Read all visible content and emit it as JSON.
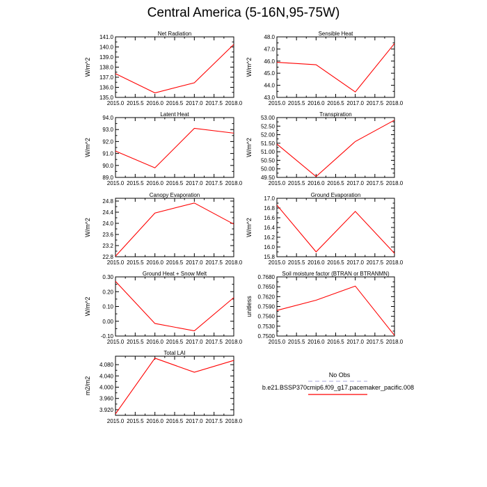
{
  "page": {
    "title": "Central America (5-16N,95-75W)"
  },
  "chart_data": [
    {
      "type": "line",
      "title": "Net Radiation",
      "ylabel": "W/m^2",
      "x": [
        2015,
        2016,
        2017,
        2018
      ],
      "xlim": [
        2015.0,
        2018.0
      ],
      "xticks": [
        "2015.0",
        "2015.5",
        "2016.0",
        "2016.5",
        "2017.0",
        "2017.5",
        "2018.0"
      ],
      "ylim": [
        135.0,
        141.0
      ],
      "yticks": [
        "135.0",
        "136.0",
        "137.0",
        "138.0",
        "139.0",
        "140.0",
        "141.0"
      ],
      "series": [
        {
          "values": [
            137.35,
            135.45,
            136.45,
            140.25
          ],
          "color": "#ff0000"
        }
      ]
    },
    {
      "type": "line",
      "title": "Sensible Heat",
      "ylabel": "W/m^2",
      "x": [
        2015,
        2016,
        2017,
        2018
      ],
      "xlim": [
        2015.0,
        2018.0
      ],
      "xticks": [
        "2015.0",
        "2015.5",
        "2016.0",
        "2016.5",
        "2017.0",
        "2017.5",
        "2018.0"
      ],
      "ylim": [
        43.0,
        48.0
      ],
      "yticks": [
        "43.0",
        "44.0",
        "45.0",
        "46.0",
        "47.0",
        "48.0"
      ],
      "series": [
        {
          "values": [
            45.9,
            45.7,
            43.45,
            47.45
          ],
          "color": "#ff0000"
        }
      ]
    },
    {
      "type": "line",
      "title": "Latent Heat",
      "ylabel": "W/m^2",
      "x": [
        2015,
        2016,
        2017,
        2018
      ],
      "xlim": [
        2015.0,
        2018.0
      ],
      "xticks": [
        "2015.0",
        "2015.5",
        "2016.0",
        "2016.5",
        "2017.0",
        "2017.5",
        "2018.0"
      ],
      "ylim": [
        89.0,
        94.0
      ],
      "yticks": [
        "89.0",
        "90.0",
        "91.0",
        "92.0",
        "93.0",
        "94.0"
      ],
      "series": [
        {
          "values": [
            91.2,
            89.8,
            93.1,
            92.7
          ],
          "color": "#ff0000"
        }
      ]
    },
    {
      "type": "line",
      "title": "Transpiration",
      "ylabel": "W/m^2",
      "x": [
        2015,
        2016,
        2017,
        2018
      ],
      "xlim": [
        2015.0,
        2018.0
      ],
      "xticks": [
        "2015.0",
        "2015.5",
        "2016.0",
        "2016.5",
        "2017.0",
        "2017.5",
        "2018.0"
      ],
      "ylim": [
        49.5,
        53.0
      ],
      "yticks": [
        "49.50",
        "50.00",
        "50.50",
        "51.00",
        "51.50",
        "52.00",
        "52.50",
        "53.00"
      ],
      "series": [
        {
          "values": [
            51.45,
            49.55,
            51.6,
            52.85
          ],
          "color": "#ff0000"
        }
      ]
    },
    {
      "type": "line",
      "title": "Canopy Evaporation",
      "ylabel": "W/m^2",
      "x": [
        2015,
        2016,
        2017,
        2018
      ],
      "xlim": [
        2015.0,
        2018.0
      ],
      "xticks": [
        "2015.0",
        "2015.5",
        "2016.0",
        "2016.5",
        "2017.0",
        "2017.5",
        "2018.0"
      ],
      "ylim": [
        22.8,
        24.9
      ],
      "yticks": [
        "22.8",
        "23.2",
        "23.6",
        "24.0",
        "24.4",
        "24.8"
      ],
      "series": [
        {
          "values": [
            22.82,
            24.37,
            24.73,
            23.97
          ],
          "color": "#ff0000"
        }
      ]
    },
    {
      "type": "line",
      "title": "Ground Evaporation",
      "ylabel": "W/m^2",
      "x": [
        2015,
        2016,
        2017,
        2018
      ],
      "xlim": [
        2015.0,
        2018.0
      ],
      "xticks": [
        "2015.0",
        "2015.5",
        "2016.0",
        "2016.5",
        "2017.0",
        "2017.5",
        "2018.0"
      ],
      "ylim": [
        15.8,
        17.0
      ],
      "yticks": [
        "15.8",
        "16.0",
        "16.2",
        "16.4",
        "16.6",
        "16.8",
        "17.0"
      ],
      "series": [
        {
          "values": [
            16.86,
            15.9,
            16.73,
            15.87
          ],
          "color": "#ff0000"
        }
      ]
    },
    {
      "type": "line",
      "title": "Ground Heat + Snow Melt",
      "ylabel": "W/m^2",
      "x": [
        2015,
        2016,
        2017,
        2018
      ],
      "xlim": [
        2015.0,
        2018.0
      ],
      "xticks": [
        "2015.0",
        "2015.5",
        "2016.0",
        "2016.5",
        "2017.0",
        "2017.5",
        "2018.0"
      ],
      "ylim": [
        -0.1,
        0.3
      ],
      "yticks": [
        "-0.10",
        "0.00",
        "0.10",
        "0.20",
        "0.30"
      ],
      "series": [
        {
          "values": [
            0.27,
            -0.015,
            -0.065,
            0.16
          ],
          "color": "#ff0000"
        }
      ]
    },
    {
      "type": "line",
      "title": "Soil moisture factor (BTRAN or BTRANMN)",
      "ylabel": "unitless",
      "x": [
        2015,
        2016,
        2017,
        2018
      ],
      "xlim": [
        2015.0,
        2018.0
      ],
      "xticks": [
        "2015.0",
        "2015.5",
        "2016.0",
        "2016.5",
        "2017.0",
        "2017.5",
        "2018.0"
      ],
      "ylim": [
        0.75,
        0.768
      ],
      "yticks": [
        "0.7500",
        "0.7530",
        "0.7560",
        "0.7590",
        "0.7620",
        "0.7650",
        "0.7680"
      ],
      "series": [
        {
          "values": [
            0.7578,
            0.7609,
            0.7652,
            0.7502
          ],
          "color": "#ff0000"
        }
      ]
    },
    {
      "type": "line",
      "title": "Total LAI",
      "ylabel": "m2/m2",
      "x": [
        2015,
        2016,
        2017,
        2018
      ],
      "xlim": [
        2015.0,
        2018.0
      ],
      "xticks": [
        "2015.0",
        "2015.5",
        "2016.0",
        "2016.5",
        "2017.0",
        "2017.5",
        "2018.0"
      ],
      "ylim": [
        3.9,
        4.11
      ],
      "yticks": [
        "3.920",
        "3.960",
        "4.000",
        "4.040",
        "4.080"
      ],
      "series": [
        {
          "values": [
            3.905,
            4.103,
            4.053,
            4.095
          ],
          "color": "#ff0000"
        }
      ]
    }
  ],
  "legend": {
    "items": [
      {
        "label": "No Obs",
        "color": "#b8b8e0",
        "dashed": true
      },
      {
        "label": "b.e21.BSSP370cmip6.f09_g17.pacemaker_pacific.008",
        "color": "#ff0000",
        "dashed": false
      }
    ]
  }
}
